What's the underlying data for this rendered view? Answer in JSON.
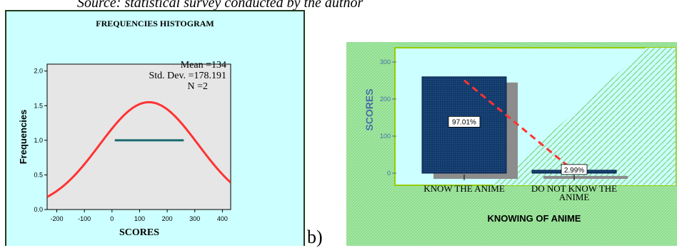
{
  "source_line": "Source: statistical survey conducted by the author",
  "panel_b_label": "b)",
  "chart_data": [
    {
      "type": "histogram",
      "title": "FREQUENCIES HISTOGRAM",
      "xlabel": "SCORES",
      "ylabel": "Frequencies",
      "xlim": [
        -235,
        430
      ],
      "ylim": [
        0,
        2.1
      ],
      "x_ticks": [
        -200,
        -100,
        0,
        100,
        200,
        300,
        400
      ],
      "x_tick_labels": [
        "-200",
        "-100",
        "0",
        "100",
        "200",
        "300",
        "400"
      ],
      "y_ticks": [
        0,
        0.5,
        1.0,
        1.5,
        2.0
      ],
      "y_tick_labels": [
        "0.0",
        "0.5",
        "1.0",
        "1.5",
        "2.0"
      ],
      "stats": {
        "mean": "Mean =134",
        "std": "Std. Dev. =178.191",
        "n": "N =2"
      },
      "bars": [
        {
          "x0": 10,
          "x1": 260,
          "value": 1.0
        }
      ],
      "normal_curve": {
        "mean": 134,
        "std": 178.191,
        "n": 2,
        "scale_peak": 1.55
      },
      "colors": {
        "background": "#ccffff",
        "plot_area": "#e6e6e6",
        "curve": "#ff3333",
        "bar": "#1a6a6e",
        "frame": "#1f3a1f"
      }
    },
    {
      "type": "bar",
      "xlabel": "KNOWING OF ANIME",
      "ylabel": "SCORES",
      "ylim": [
        0,
        300
      ],
      "y_ticks": [
        0,
        100,
        200,
        300
      ],
      "y_tick_labels": [
        "0",
        "100",
        "200",
        "300"
      ],
      "categories": [
        "KNOW THE ANIME",
        "DO NOT KNOW THE ANIME"
      ],
      "category_labels": [
        [
          "KNOW THE ANIME"
        ],
        [
          "DO NOT KNOW THE",
          "ANIME"
        ]
      ],
      "values": [
        260,
        8
      ],
      "data_labels": [
        "97.01%",
        "2.99%"
      ],
      "colors": {
        "background": "#99e699",
        "plot_area": "#ccffff",
        "bar": "#123a6b",
        "shadow": "#8c8c8c",
        "trend": "#ff3333",
        "axis_text": "#4a6fa5",
        "frame": "#99cc00"
      }
    }
  ]
}
